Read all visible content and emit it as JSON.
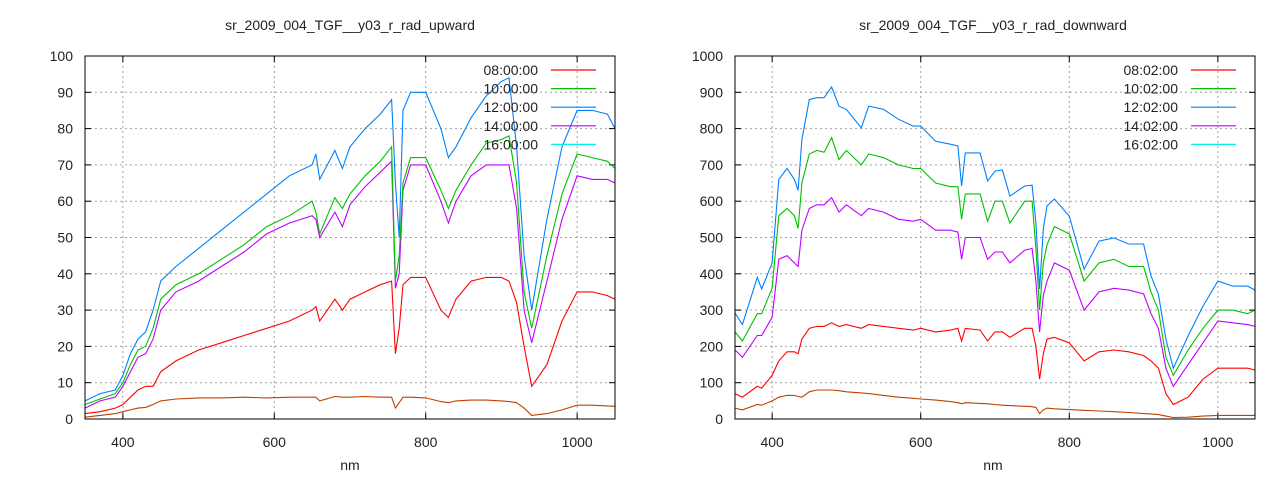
{
  "chart_data": [
    {
      "type": "line",
      "title": "sr_2009_004_TGF__y03_r_rad_upward",
      "xlabel": "nm",
      "ylabel": "",
      "xlim": [
        350,
        1050
      ],
      "ylim": [
        0,
        100
      ],
      "xticks": [
        400,
        600,
        800,
        1000
      ],
      "yticks": [
        0,
        10,
        20,
        30,
        40,
        50,
        60,
        70,
        80,
        90,
        100
      ],
      "grid": true,
      "legend_position": "top-right",
      "legend": [
        {
          "name": "08:00:00",
          "color": "#ff0000"
        },
        {
          "name": "10:00:00",
          "color": "#00c000"
        },
        {
          "name": "12:00:00",
          "color": "#0080ff"
        },
        {
          "name": "14:00:00",
          "color": "#c000ff"
        },
        {
          "name": "16:00:00",
          "color": "#00eeee"
        }
      ],
      "x": [
        350,
        370,
        390,
        400,
        410,
        420,
        430,
        440,
        450,
        470,
        500,
        530,
        560,
        590,
        620,
        650,
        655,
        660,
        680,
        690,
        700,
        720,
        740,
        755,
        760,
        765,
        770,
        780,
        800,
        820,
        830,
        840,
        860,
        880,
        900,
        910,
        920,
        930,
        940,
        960,
        980,
        1000,
        1020,
        1040,
        1050
      ],
      "series": [
        {
          "color": "#0080ff",
          "values": [
            5,
            7,
            8,
            12,
            18,
            22,
            24,
            30,
            38,
            42,
            47,
            52,
            57,
            62,
            67,
            70,
            73,
            66,
            74,
            69,
            75,
            80,
            84,
            88,
            65,
            50,
            85,
            90,
            90,
            80,
            72,
            75,
            83,
            89,
            93,
            94,
            75,
            45,
            30,
            55,
            75,
            85,
            85,
            84,
            80
          ]
        },
        {
          "color": "#00c000",
          "values": [
            4,
            5.5,
            7,
            10,
            15,
            19,
            20,
            25,
            33,
            37,
            40,
            44,
            48,
            53,
            56,
            60,
            57,
            51,
            61,
            58,
            62,
            67,
            71,
            75,
            38,
            45,
            65,
            72,
            72,
            63,
            58,
            63,
            70,
            76,
            77,
            78,
            65,
            35,
            25,
            45,
            62,
            73,
            72,
            71,
            69
          ]
        },
        {
          "color": "#c000ff",
          "values": [
            3,
            5,
            6,
            9,
            13,
            17,
            18,
            22,
            30,
            35,
            38,
            42,
            46,
            51,
            54,
            56,
            55,
            50,
            57,
            53,
            59,
            64,
            68,
            71,
            36,
            40,
            63,
            70,
            70,
            60,
            54,
            60,
            67,
            70,
            70,
            70,
            58,
            30,
            21,
            38,
            55,
            67,
            66,
            66,
            65
          ]
        },
        {
          "color": "#ff0000",
          "values": [
            1.5,
            2,
            3,
            4,
            6,
            8,
            9,
            9,
            13,
            16,
            19,
            21,
            23,
            25,
            27,
            30,
            31,
            27,
            33,
            30,
            33,
            35,
            37,
            38,
            18,
            25,
            37,
            39,
            39,
            30,
            28,
            33,
            38,
            39,
            39,
            38,
            32,
            20,
            9,
            15,
            27,
            35,
            35,
            34,
            33
          ]
        },
        {
          "color": "#c04000",
          "values": [
            0.5,
            1,
            1.5,
            2,
            2.5,
            3,
            3.2,
            4,
            5,
            5.5,
            5.8,
            5.8,
            6,
            5.8,
            6,
            6,
            6,
            5,
            6.2,
            6,
            6,
            6.2,
            6,
            6,
            3,
            4.5,
            6,
            6,
            5.8,
            4.8,
            4.5,
            5,
            5.2,
            5.2,
            5,
            4.8,
            4.5,
            3,
            1,
            1.5,
            2.5,
            3.8,
            3.8,
            3.6,
            3.5
          ]
        }
      ]
    },
    {
      "type": "line",
      "title": "sr_2009_004_TGF__y03_r_rad_downward",
      "xlabel": "nm",
      "ylabel": "",
      "xlim": [
        350,
        1050
      ],
      "ylim": [
        0,
        1000
      ],
      "xticks": [
        400,
        600,
        800,
        1000
      ],
      "yticks": [
        0,
        100,
        200,
        300,
        400,
        500,
        600,
        700,
        800,
        900,
        1000
      ],
      "grid": true,
      "legend_position": "top-right",
      "legend": [
        {
          "name": "08:02:00",
          "color": "#ff0000"
        },
        {
          "name": "10:02:00",
          "color": "#00c000"
        },
        {
          "name": "12:02:00",
          "color": "#0080ff"
        },
        {
          "name": "14:02:00",
          "color": "#c000ff"
        },
        {
          "name": "16:02:00",
          "color": "#00eeee"
        }
      ],
      "x": [
        350,
        360,
        380,
        386,
        400,
        409,
        420,
        430,
        435,
        440,
        450,
        460,
        470,
        480,
        490,
        500,
        520,
        530,
        550,
        570,
        590,
        600,
        620,
        640,
        650,
        655,
        660,
        680,
        690,
        700,
        710,
        720,
        740,
        750,
        755,
        760,
        765,
        770,
        780,
        800,
        820,
        840,
        860,
        880,
        900,
        910,
        920,
        930,
        940,
        960,
        980,
        1000,
        1020,
        1040,
        1050
      ],
      "series": [
        {
          "color": "#0080ff",
          "values": [
            292,
            260,
            390,
            358,
            430,
            660,
            690,
            660,
            630,
            770,
            880,
            885,
            885,
            915,
            862,
            853,
            802,
            862,
            853,
            826,
            807,
            807,
            765,
            757,
            752,
            642,
            733,
            733,
            656,
            683,
            686,
            614,
            642,
            644,
            540,
            358,
            523,
            587,
            606,
            559,
            413,
            490,
            499,
            482,
            482,
            394,
            344,
            220,
            140,
            229,
            311,
            380,
            366,
            366,
            355
          ]
        },
        {
          "color": "#00c000",
          "values": [
            240,
            215,
            290,
            290,
            360,
            560,
            580,
            560,
            525,
            650,
            730,
            740,
            735,
            775,
            715,
            740,
            700,
            730,
            720,
            700,
            690,
            690,
            650,
            640,
            640,
            550,
            620,
            620,
            545,
            600,
            600,
            540,
            600,
            600,
            470,
            300,
            430,
            480,
            530,
            510,
            380,
            430,
            440,
            420,
            420,
            350,
            300,
            170,
            120,
            190,
            250,
            300,
            300,
            290,
            300
          ]
        },
        {
          "color": "#c000ff",
          "values": [
            190,
            170,
            230,
            230,
            280,
            440,
            450,
            430,
            420,
            520,
            580,
            590,
            590,
            610,
            570,
            590,
            560,
            580,
            570,
            550,
            545,
            550,
            520,
            520,
            515,
            440,
            500,
            500,
            440,
            460,
            460,
            430,
            465,
            470,
            380,
            240,
            340,
            380,
            430,
            410,
            300,
            350,
            360,
            355,
            345,
            290,
            250,
            140,
            90,
            150,
            210,
            270,
            265,
            260,
            255
          ]
        },
        {
          "color": "#ff0000",
          "values": [
            70,
            60,
            90,
            85,
            120,
            160,
            185,
            185,
            180,
            220,
            250,
            255,
            255,
            265,
            255,
            260,
            250,
            260,
            255,
            250,
            245,
            250,
            240,
            245,
            250,
            215,
            250,
            245,
            215,
            240,
            240,
            225,
            250,
            250,
            200,
            110,
            180,
            220,
            225,
            210,
            160,
            185,
            190,
            185,
            175,
            160,
            140,
            70,
            40,
            60,
            110,
            140,
            140,
            140,
            135
          ]
        },
        {
          "color": "#c04000",
          "values": [
            30,
            25,
            40,
            38,
            50,
            60,
            65,
            65,
            62,
            60,
            75,
            80,
            80,
            80,
            78,
            75,
            72,
            70,
            65,
            60,
            57,
            55,
            52,
            48,
            45,
            42,
            45,
            43,
            42,
            40,
            38,
            37,
            35,
            34,
            32,
            15,
            25,
            30,
            28,
            26,
            24,
            22,
            20,
            18,
            15,
            14,
            12,
            8,
            4,
            5,
            8,
            10,
            10,
            10,
            10
          ]
        }
      ]
    }
  ]
}
